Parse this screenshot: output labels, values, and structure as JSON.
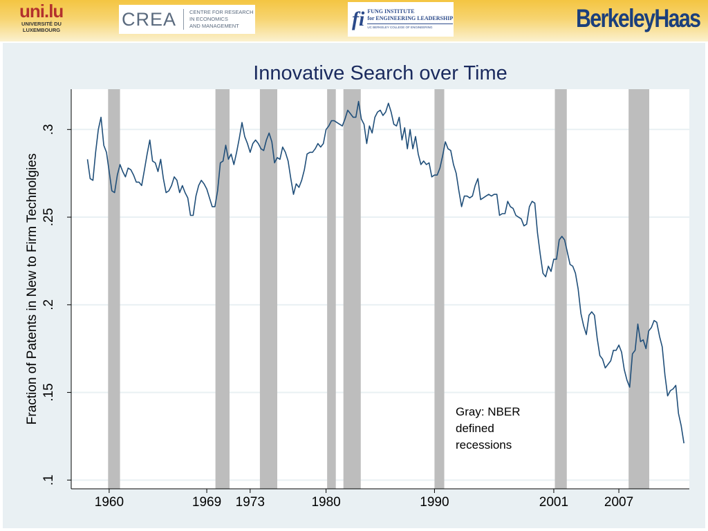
{
  "header": {
    "uni_logo": {
      "mark": "uni.lu",
      "line1": "UNIVERSITÉ DU",
      "line2": "LUXEMBOURG"
    },
    "crea_logo": {
      "word": "CREA",
      "text": "CENTRE FOR RESEARCH\nIN ECONOMICS\nAND MANAGEMENT"
    },
    "fung_logo": {
      "mark": "fi",
      "line1": "FUNG INSTITUTE",
      "line2": "for ENGINEERING LEADERSHIP",
      "line3": "UC BERKELEY COLLEGE OF ENGINEERING"
    },
    "haas_logo": {
      "word": "BerkeleyHaas"
    }
  },
  "colors": {
    "banner": "#f4c542",
    "panel": "#e9f0f3",
    "plot_bg": "#ffffff",
    "line": "#1f4e79",
    "recession": "#bdbdbd",
    "title": "#1a2a5e"
  },
  "chart_data": {
    "type": "line",
    "title": "Innovative Search over Time",
    "xlabel": "",
    "ylabel": "Fraction of Patents in New to Firm Technolgies",
    "xlim": [
      1956.5,
      2013.5
    ],
    "ylim": [
      0.095,
      0.323
    ],
    "x_ticks": [
      {
        "value": 1960,
        "label": "1960"
      },
      {
        "value": 1969,
        "label": "1969"
      },
      {
        "value": 1973,
        "label": "1973"
      },
      {
        "value": 1980,
        "label": "1980"
      },
      {
        "value": 1990,
        "label": "1990"
      },
      {
        "value": 2001,
        "label": "2001"
      },
      {
        "value": 2007,
        "label": "2007"
      }
    ],
    "y_ticks": [
      {
        "value": 0.1,
        "label": ".1"
      },
      {
        "value": 0.15,
        "label": ".15"
      },
      {
        "value": 0.2,
        "label": ".2"
      },
      {
        "value": 0.25,
        "label": ".25"
      },
      {
        "value": 0.3,
        "label": ".3"
      }
    ],
    "grid": true,
    "recessions": [
      [
        1959.9,
        1961.0
      ],
      [
        1969.8,
        1971.1
      ],
      [
        1973.9,
        1975.5
      ],
      [
        1980.1,
        1980.9
      ],
      [
        1981.6,
        1983.2
      ],
      [
        1990.0,
        1990.9
      ],
      [
        2001.1,
        2002.2
      ],
      [
        2007.9,
        2009.8
      ]
    ],
    "annotation": "Gray: NBER\ndefined\nrecessions",
    "series": [
      {
        "values": [
          [
            1958.0,
            0.283
          ],
          [
            1958.25,
            0.272
          ],
          [
            1958.5,
            0.271
          ],
          [
            1958.75,
            0.287
          ],
          [
            1959.0,
            0.3
          ],
          [
            1959.25,
            0.307
          ],
          [
            1959.5,
            0.291
          ],
          [
            1959.75,
            0.287
          ],
          [
            1960.0,
            0.276
          ],
          [
            1960.25,
            0.265
          ],
          [
            1960.5,
            0.264
          ],
          [
            1960.75,
            0.274
          ],
          [
            1961.0,
            0.28
          ],
          [
            1961.25,
            0.276
          ],
          [
            1961.5,
            0.273
          ],
          [
            1961.75,
            0.278
          ],
          [
            1962.0,
            0.277
          ],
          [
            1962.25,
            0.274
          ],
          [
            1962.5,
            0.27
          ],
          [
            1962.75,
            0.27
          ],
          [
            1963.0,
            0.268
          ],
          [
            1963.25,
            0.277
          ],
          [
            1963.5,
            0.286
          ],
          [
            1963.75,
            0.294
          ],
          [
            1964.0,
            0.282
          ],
          [
            1964.25,
            0.281
          ],
          [
            1964.5,
            0.276
          ],
          [
            1964.75,
            0.283
          ],
          [
            1965.0,
            0.272
          ],
          [
            1965.25,
            0.264
          ],
          [
            1965.5,
            0.265
          ],
          [
            1965.75,
            0.268
          ],
          [
            1966.0,
            0.273
          ],
          [
            1966.25,
            0.271
          ],
          [
            1966.5,
            0.264
          ],
          [
            1966.75,
            0.268
          ],
          [
            1967.0,
            0.264
          ],
          [
            1967.25,
            0.261
          ],
          [
            1967.5,
            0.251
          ],
          [
            1967.75,
            0.251
          ],
          [
            1968.0,
            0.262
          ],
          [
            1968.25,
            0.268
          ],
          [
            1968.5,
            0.271
          ],
          [
            1968.75,
            0.269
          ],
          [
            1969.0,
            0.266
          ],
          [
            1969.25,
            0.261
          ],
          [
            1969.5,
            0.256
          ],
          [
            1969.75,
            0.256
          ],
          [
            1970.0,
            0.265
          ],
          [
            1970.25,
            0.281
          ],
          [
            1970.5,
            0.282
          ],
          [
            1970.75,
            0.291
          ],
          [
            1971.0,
            0.283
          ],
          [
            1971.25,
            0.286
          ],
          [
            1971.5,
            0.28
          ],
          [
            1971.75,
            0.287
          ],
          [
            1972.0,
            0.295
          ],
          [
            1972.25,
            0.304
          ],
          [
            1972.5,
            0.296
          ],
          [
            1972.75,
            0.292
          ],
          [
            1973.0,
            0.287
          ],
          [
            1973.25,
            0.292
          ],
          [
            1973.5,
            0.294
          ],
          [
            1973.75,
            0.292
          ],
          [
            1974.0,
            0.289
          ],
          [
            1974.25,
            0.288
          ],
          [
            1974.5,
            0.294
          ],
          [
            1974.75,
            0.298
          ],
          [
            1975.0,
            0.293
          ],
          [
            1975.25,
            0.281
          ],
          [
            1975.5,
            0.284
          ],
          [
            1975.75,
            0.283
          ],
          [
            1976.0,
            0.29
          ],
          [
            1976.25,
            0.287
          ],
          [
            1976.5,
            0.282
          ],
          [
            1976.75,
            0.272
          ],
          [
            1977.0,
            0.263
          ],
          [
            1977.25,
            0.269
          ],
          [
            1977.5,
            0.267
          ],
          [
            1977.75,
            0.271
          ],
          [
            1978.0,
            0.277
          ],
          [
            1978.25,
            0.286
          ],
          [
            1978.5,
            0.287
          ],
          [
            1978.75,
            0.287
          ],
          [
            1979.0,
            0.289
          ],
          [
            1979.25,
            0.292
          ],
          [
            1979.5,
            0.29
          ],
          [
            1979.75,
            0.292
          ],
          [
            1980.0,
            0.3
          ],
          [
            1980.25,
            0.302
          ],
          [
            1980.5,
            0.305
          ],
          [
            1980.75,
            0.305
          ],
          [
            1981.0,
            0.304
          ],
          [
            1981.25,
            0.303
          ],
          [
            1981.5,
            0.302
          ],
          [
            1981.75,
            0.306
          ],
          [
            1982.0,
            0.311
          ],
          [
            1982.25,
            0.309
          ],
          [
            1982.5,
            0.307
          ],
          [
            1982.75,
            0.307
          ],
          [
            1983.0,
            0.316
          ],
          [
            1983.25,
            0.306
          ],
          [
            1983.5,
            0.303
          ],
          [
            1983.75,
            0.292
          ],
          [
            1984.0,
            0.302
          ],
          [
            1984.25,
            0.298
          ],
          [
            1984.5,
            0.307
          ],
          [
            1984.75,
            0.31
          ],
          [
            1985.0,
            0.311
          ],
          [
            1985.25,
            0.308
          ],
          [
            1985.5,
            0.31
          ],
          [
            1985.75,
            0.315
          ],
          [
            1986.0,
            0.31
          ],
          [
            1986.25,
            0.303
          ],
          [
            1986.5,
            0.302
          ],
          [
            1986.75,
            0.307
          ],
          [
            1987.0,
            0.294
          ],
          [
            1987.25,
            0.301
          ],
          [
            1987.5,
            0.289
          ],
          [
            1987.75,
            0.3
          ],
          [
            1988.0,
            0.289
          ],
          [
            1988.25,
            0.296
          ],
          [
            1988.5,
            0.286
          ],
          [
            1988.75,
            0.28
          ],
          [
            1989.0,
            0.282
          ],
          [
            1989.25,
            0.28
          ],
          [
            1989.5,
            0.281
          ],
          [
            1989.75,
            0.273
          ],
          [
            1990.0,
            0.274
          ],
          [
            1990.25,
            0.274
          ],
          [
            1990.5,
            0.278
          ],
          [
            1990.75,
            0.285
          ],
          [
            1991.0,
            0.293
          ],
          [
            1991.25,
            0.289
          ],
          [
            1991.5,
            0.288
          ],
          [
            1991.75,
            0.28
          ],
          [
            1992.0,
            0.275
          ],
          [
            1992.25,
            0.265
          ],
          [
            1992.5,
            0.256
          ],
          [
            1992.75,
            0.262
          ],
          [
            1993.0,
            0.262
          ],
          [
            1993.25,
            0.261
          ],
          [
            1993.5,
            0.262
          ],
          [
            1993.75,
            0.268
          ],
          [
            1994.0,
            0.272
          ],
          [
            1994.25,
            0.26
          ],
          [
            1994.5,
            0.261
          ],
          [
            1994.75,
            0.262
          ],
          [
            1995.0,
            0.263
          ],
          [
            1995.25,
            0.262
          ],
          [
            1995.5,
            0.263
          ],
          [
            1995.75,
            0.263
          ],
          [
            1996.0,
            0.251
          ],
          [
            1996.25,
            0.252
          ],
          [
            1996.5,
            0.252
          ],
          [
            1996.75,
            0.259
          ],
          [
            1997.0,
            0.256
          ],
          [
            1997.25,
            0.255
          ],
          [
            1997.5,
            0.251
          ],
          [
            1997.75,
            0.25
          ],
          [
            1998.0,
            0.249
          ],
          [
            1998.25,
            0.245
          ],
          [
            1998.5,
            0.246
          ],
          [
            1998.75,
            0.256
          ],
          [
            1999.0,
            0.259
          ],
          [
            1999.25,
            0.258
          ],
          [
            1999.5,
            0.241
          ],
          [
            1999.75,
            0.229
          ],
          [
            2000.0,
            0.218
          ],
          [
            2000.25,
            0.216
          ],
          [
            2000.5,
            0.222
          ],
          [
            2000.75,
            0.219
          ],
          [
            2001.0,
            0.226
          ],
          [
            2001.25,
            0.226
          ],
          [
            2001.5,
            0.237
          ],
          [
            2001.75,
            0.239
          ],
          [
            2002.0,
            0.237
          ],
          [
            2002.25,
            0.23
          ],
          [
            2002.5,
            0.223
          ],
          [
            2002.75,
            0.222
          ],
          [
            2003.0,
            0.218
          ],
          [
            2003.25,
            0.209
          ],
          [
            2003.5,
            0.195
          ],
          [
            2003.75,
            0.188
          ],
          [
            2004.0,
            0.183
          ],
          [
            2004.25,
            0.194
          ],
          [
            2004.5,
            0.196
          ],
          [
            2004.75,
            0.194
          ],
          [
            2005.0,
            0.181
          ],
          [
            2005.25,
            0.171
          ],
          [
            2005.5,
            0.169
          ],
          [
            2005.75,
            0.164
          ],
          [
            2006.0,
            0.166
          ],
          [
            2006.25,
            0.168
          ],
          [
            2006.5,
            0.174
          ],
          [
            2006.75,
            0.174
          ],
          [
            2007.0,
            0.177
          ],
          [
            2007.25,
            0.173
          ],
          [
            2007.5,
            0.163
          ],
          [
            2007.75,
            0.157
          ],
          [
            2008.0,
            0.153
          ],
          [
            2008.25,
            0.172
          ],
          [
            2008.5,
            0.174
          ],
          [
            2008.75,
            0.189
          ],
          [
            2009.0,
            0.179
          ],
          [
            2009.25,
            0.18
          ],
          [
            2009.5,
            0.175
          ],
          [
            2009.75,
            0.185
          ],
          [
            2010.0,
            0.187
          ],
          [
            2010.25,
            0.191
          ],
          [
            2010.5,
            0.19
          ],
          [
            2010.75,
            0.182
          ],
          [
            2011.0,
            0.176
          ],
          [
            2011.25,
            0.16
          ],
          [
            2011.5,
            0.148
          ],
          [
            2011.75,
            0.151
          ],
          [
            2012.0,
            0.152
          ],
          [
            2012.25,
            0.154
          ],
          [
            2012.5,
            0.138
          ],
          [
            2012.75,
            0.131
          ],
          [
            2013.0,
            0.121
          ]
        ]
      }
    ]
  }
}
